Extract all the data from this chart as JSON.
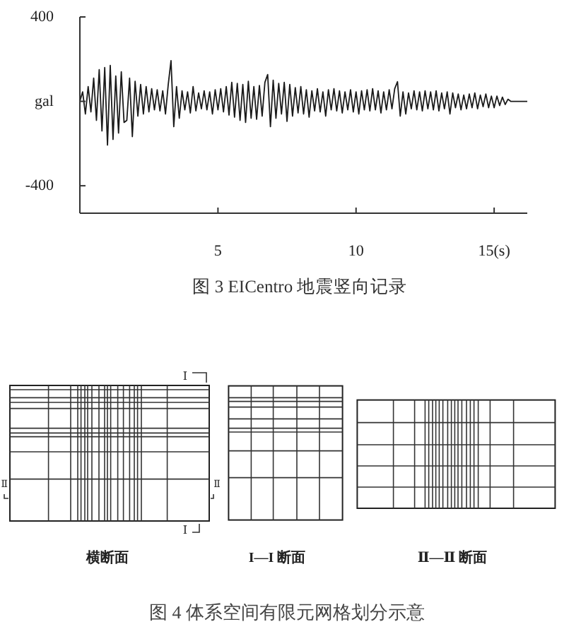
{
  "chart_data": [
    {
      "type": "line",
      "title": "图 3 EICentro 地震竖向记录",
      "color": "#1a1a1a",
      "x": [
        0,
        0.1,
        0.2,
        0.3,
        0.4,
        0.5,
        0.6,
        0.7,
        0.8,
        0.9,
        1,
        1.1,
        1.2,
        1.3,
        1.4,
        1.5,
        1.6,
        1.7,
        1.8,
        1.9,
        2,
        2.1,
        2.2,
        2.3,
        2.4,
        2.5,
        2.6,
        2.7,
        2.8,
        2.9,
        3,
        3.1,
        3.2,
        3.3,
        3.4,
        3.5,
        3.6,
        3.7,
        3.8,
        3.9,
        4,
        4.1,
        4.2,
        4.3,
        4.4,
        4.5,
        4.6,
        4.7,
        4.8,
        4.9,
        5,
        5.1,
        5.2,
        5.3,
        5.4,
        5.5,
        5.6,
        5.7,
        5.8,
        5.9,
        6,
        6.1,
        6.2,
        6.3,
        6.4,
        6.5,
        6.6,
        6.7,
        6.8,
        6.9,
        7,
        7.1,
        7.2,
        7.3,
        7.4,
        7.5,
        7.6,
        7.7,
        7.8,
        7.9,
        8,
        8.1,
        8.2,
        8.3,
        8.4,
        8.5,
        8.6,
        8.7,
        8.8,
        8.9,
        9,
        9.1,
        9.2,
        9.3,
        9.4,
        9.5,
        9.6,
        9.7,
        9.8,
        9.9,
        10,
        10.1,
        10.2,
        10.3,
        10.4,
        10.5,
        10.6,
        10.7,
        10.8,
        10.9,
        11,
        11.1,
        11.2,
        11.3,
        11.4,
        11.5,
        11.6,
        11.7,
        11.8,
        11.9,
        12,
        12.1,
        12.2,
        12.3,
        12.4,
        12.5,
        12.6,
        12.7,
        12.8,
        12.9,
        13,
        13.1,
        13.2,
        13.3,
        13.4,
        13.5,
        13.6,
        13.7,
        13.8,
        13.9,
        14,
        14.1,
        14.2,
        14.3,
        14.4,
        14.5,
        14.6,
        14.7,
        14.8,
        14.9,
        15,
        15.1,
        15.2,
        15.3,
        15.4,
        15.5,
        15.6,
        16.2
      ],
      "values": [
        0,
        45,
        -60,
        70,
        -50,
        110,
        -90,
        150,
        -140,
        160,
        -207,
        170,
        -180,
        120,
        -150,
        140,
        -100,
        -90,
        110,
        -167,
        95,
        -70,
        80,
        -60,
        70,
        -50,
        60,
        -40,
        55,
        -45,
        50,
        -60,
        80,
        193,
        -120,
        70,
        -80,
        50,
        -40,
        45,
        -55,
        70,
        -45,
        40,
        -35,
        50,
        -40,
        45,
        -60,
        55,
        -40,
        60,
        -50,
        70,
        -65,
        90,
        -75,
        85,
        -90,
        80,
        -100,
        95,
        -80,
        70,
        -85,
        75,
        -70,
        90,
        127,
        -120,
        100,
        -80,
        85,
        -60,
        90,
        -95,
        80,
        -70,
        65,
        -55,
        70,
        -60,
        55,
        -75,
        50,
        -45,
        60,
        -50,
        45,
        -70,
        55,
        -40,
        60,
        -45,
        50,
        -55,
        45,
        -40,
        55,
        -50,
        45,
        -60,
        50,
        -40,
        55,
        -45,
        60,
        -40,
        50,
        -55,
        45,
        -40,
        55,
        -35,
        60,
        93,
        -70,
        45,
        -60,
        40,
        -35,
        50,
        -40,
        45,
        -45,
        50,
        -35,
        45,
        -40,
        50,
        -45,
        40,
        -35,
        45,
        -60,
        40,
        -30,
        35,
        -40,
        30,
        -35,
        35,
        -30,
        40,
        -35,
        30,
        -25,
        35,
        -30,
        25,
        -30,
        25,
        -20,
        20,
        -15,
        10,
        0,
        0
      ],
      "xlim": [
        0,
        16.2
      ],
      "xticks": [
        5,
        10,
        {
          "value": 15,
          "label": "15(s)"
        }
      ],
      "ylim": [
        -530,
        400
      ],
      "yticks": [
        400,
        {
          "value": 0,
          "label": "gal"
        },
        -400
      ]
    },
    {
      "type": "other",
      "title": "图 4 体系空间有限元网格划分示意",
      "annotations": [
        "横断面",
        "I—I 断面",
        "Ⅱ—Ⅱ 断面",
        "Ⅰ",
        "Ⅰ",
        "Ⅱ",
        "Ⅱ"
      ]
    }
  ]
}
